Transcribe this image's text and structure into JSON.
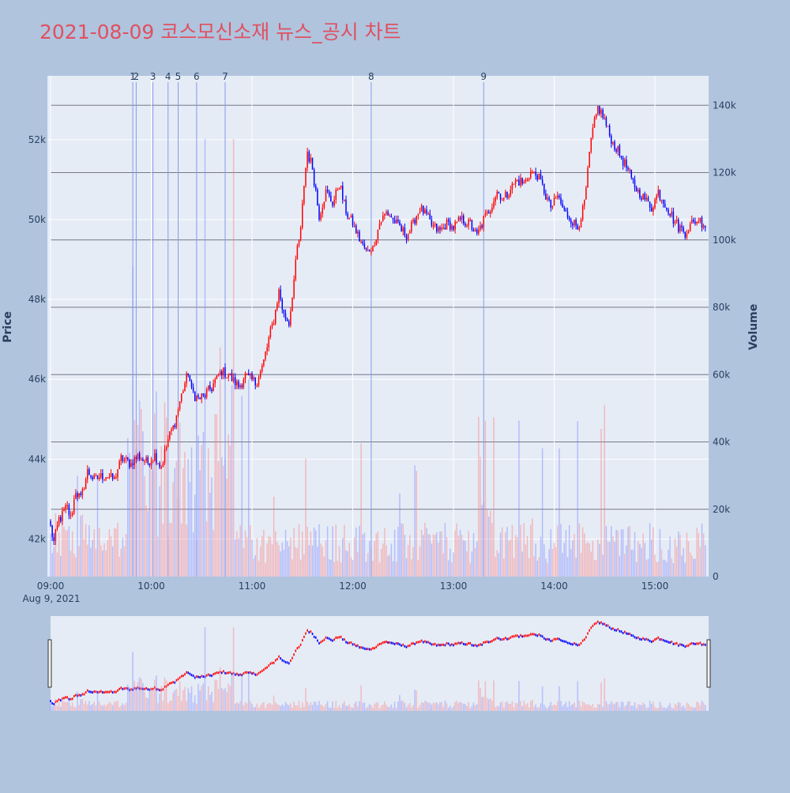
{
  "chart_data": {
    "type": "candlestick",
    "title": "2021-08-09 코스모신소재 뉴스_공시 차트",
    "y_price_label": "Price",
    "y_volume_label": "Volume",
    "x_date_label": "Aug 9, 2021",
    "x_ticks": [
      "09:00",
      "10:00",
      "11:00",
      "12:00",
      "13:00",
      "14:00",
      "15:00"
    ],
    "x_range_minutes": [
      540,
      932
    ],
    "price_ticks": [
      "42k",
      "44k",
      "46k",
      "48k",
      "50k",
      "52k"
    ],
    "price_tick_values": [
      42000,
      44000,
      46000,
      48000,
      50000,
      52000
    ],
    "price_range": [
      41060,
      53600
    ],
    "volume_ticks": [
      "0",
      "20k",
      "40k",
      "60k",
      "80k",
      "100k",
      "120k",
      "140k"
    ],
    "volume_tick_values": [
      0,
      20000,
      40000,
      60000,
      80000,
      100000,
      120000,
      140000
    ],
    "volume_range": [
      0,
      145000
    ],
    "up_color": "#ff0000",
    "down_color": "#0000ff",
    "news_markers": [
      {
        "label": "1",
        "minute": 589
      },
      {
        "label": "2",
        "minute": 591
      },
      {
        "label": "3",
        "minute": 601
      },
      {
        "label": "4",
        "minute": 610
      },
      {
        "label": "5",
        "minute": 616
      },
      {
        "label": "6",
        "minute": 627
      },
      {
        "label": "7",
        "minute": 644
      },
      {
        "label": "8",
        "minute": 731
      },
      {
        "label": "9",
        "minute": 798
      }
    ],
    "price_anchors": [
      [
        540,
        42300
      ],
      [
        542,
        41900
      ],
      [
        545,
        42500
      ],
      [
        550,
        42800
      ],
      [
        552,
        42500
      ],
      [
        555,
        43200
      ],
      [
        558,
        43000
      ],
      [
        562,
        43700
      ],
      [
        566,
        43500
      ],
      [
        572,
        43600
      ],
      [
        578,
        43500
      ],
      [
        582,
        44000
      ],
      [
        588,
        43900
      ],
      [
        592,
        44100
      ],
      [
        598,
        43900
      ],
      [
        602,
        44100
      ],
      [
        606,
        43800
      ],
      [
        610,
        44500
      ],
      [
        614,
        44900
      ],
      [
        618,
        45600
      ],
      [
        622,
        46200
      ],
      [
        624,
        45700
      ],
      [
        628,
        45500
      ],
      [
        632,
        45600
      ],
      [
        636,
        45800
      ],
      [
        642,
        46200
      ],
      [
        646,
        46100
      ],
      [
        652,
        45800
      ],
      [
        656,
        46100
      ],
      [
        662,
        45900
      ],
      [
        666,
        46300
      ],
      [
        670,
        47000
      ],
      [
        673,
        47500
      ],
      [
        676,
        48200
      ],
      [
        679,
        47600
      ],
      [
        682,
        47400
      ],
      [
        685,
        48500
      ],
      [
        687,
        49300
      ],
      [
        689,
        49700
      ],
      [
        691,
        50900
      ],
      [
        693,
        51700
      ],
      [
        696,
        51300
      ],
      [
        700,
        50100
      ],
      [
        704,
        50700
      ],
      [
        708,
        50400
      ],
      [
        712,
        50900
      ],
      [
        716,
        50200
      ],
      [
        720,
        49900
      ],
      [
        724,
        49500
      ],
      [
        728,
        49200
      ],
      [
        732,
        49300
      ],
      [
        736,
        49900
      ],
      [
        740,
        50200
      ],
      [
        744,
        50000
      ],
      [
        748,
        49800
      ],
      [
        752,
        49600
      ],
      [
        756,
        49900
      ],
      [
        760,
        50300
      ],
      [
        764,
        50100
      ],
      [
        768,
        49800
      ],
      [
        772,
        49700
      ],
      [
        776,
        49900
      ],
      [
        780,
        49800
      ],
      [
        784,
        50000
      ],
      [
        790,
        49900
      ],
      [
        794,
        49600
      ],
      [
        798,
        50000
      ],
      [
        802,
        50300
      ],
      [
        806,
        50700
      ],
      [
        810,
        50500
      ],
      [
        814,
        50800
      ],
      [
        818,
        51000
      ],
      [
        822,
        50900
      ],
      [
        826,
        51200
      ],
      [
        830,
        51100
      ],
      [
        834,
        50700
      ],
      [
        838,
        50300
      ],
      [
        842,
        50600
      ],
      [
        846,
        50200
      ],
      [
        850,
        50000
      ],
      [
        854,
        49800
      ],
      [
        858,
        50400
      ],
      [
        862,
        52000
      ],
      [
        866,
        52800
      ],
      [
        870,
        52500
      ],
      [
        874,
        52000
      ],
      [
        878,
        51700
      ],
      [
        882,
        51400
      ],
      [
        886,
        51000
      ],
      [
        890,
        50700
      ],
      [
        894,
        50500
      ],
      [
        898,
        50300
      ],
      [
        902,
        50700
      ],
      [
        906,
        50400
      ],
      [
        910,
        50100
      ],
      [
        914,
        49800
      ],
      [
        918,
        49700
      ],
      [
        922,
        49900
      ],
      [
        926,
        50000
      ],
      [
        932,
        49800
      ]
    ]
  }
}
